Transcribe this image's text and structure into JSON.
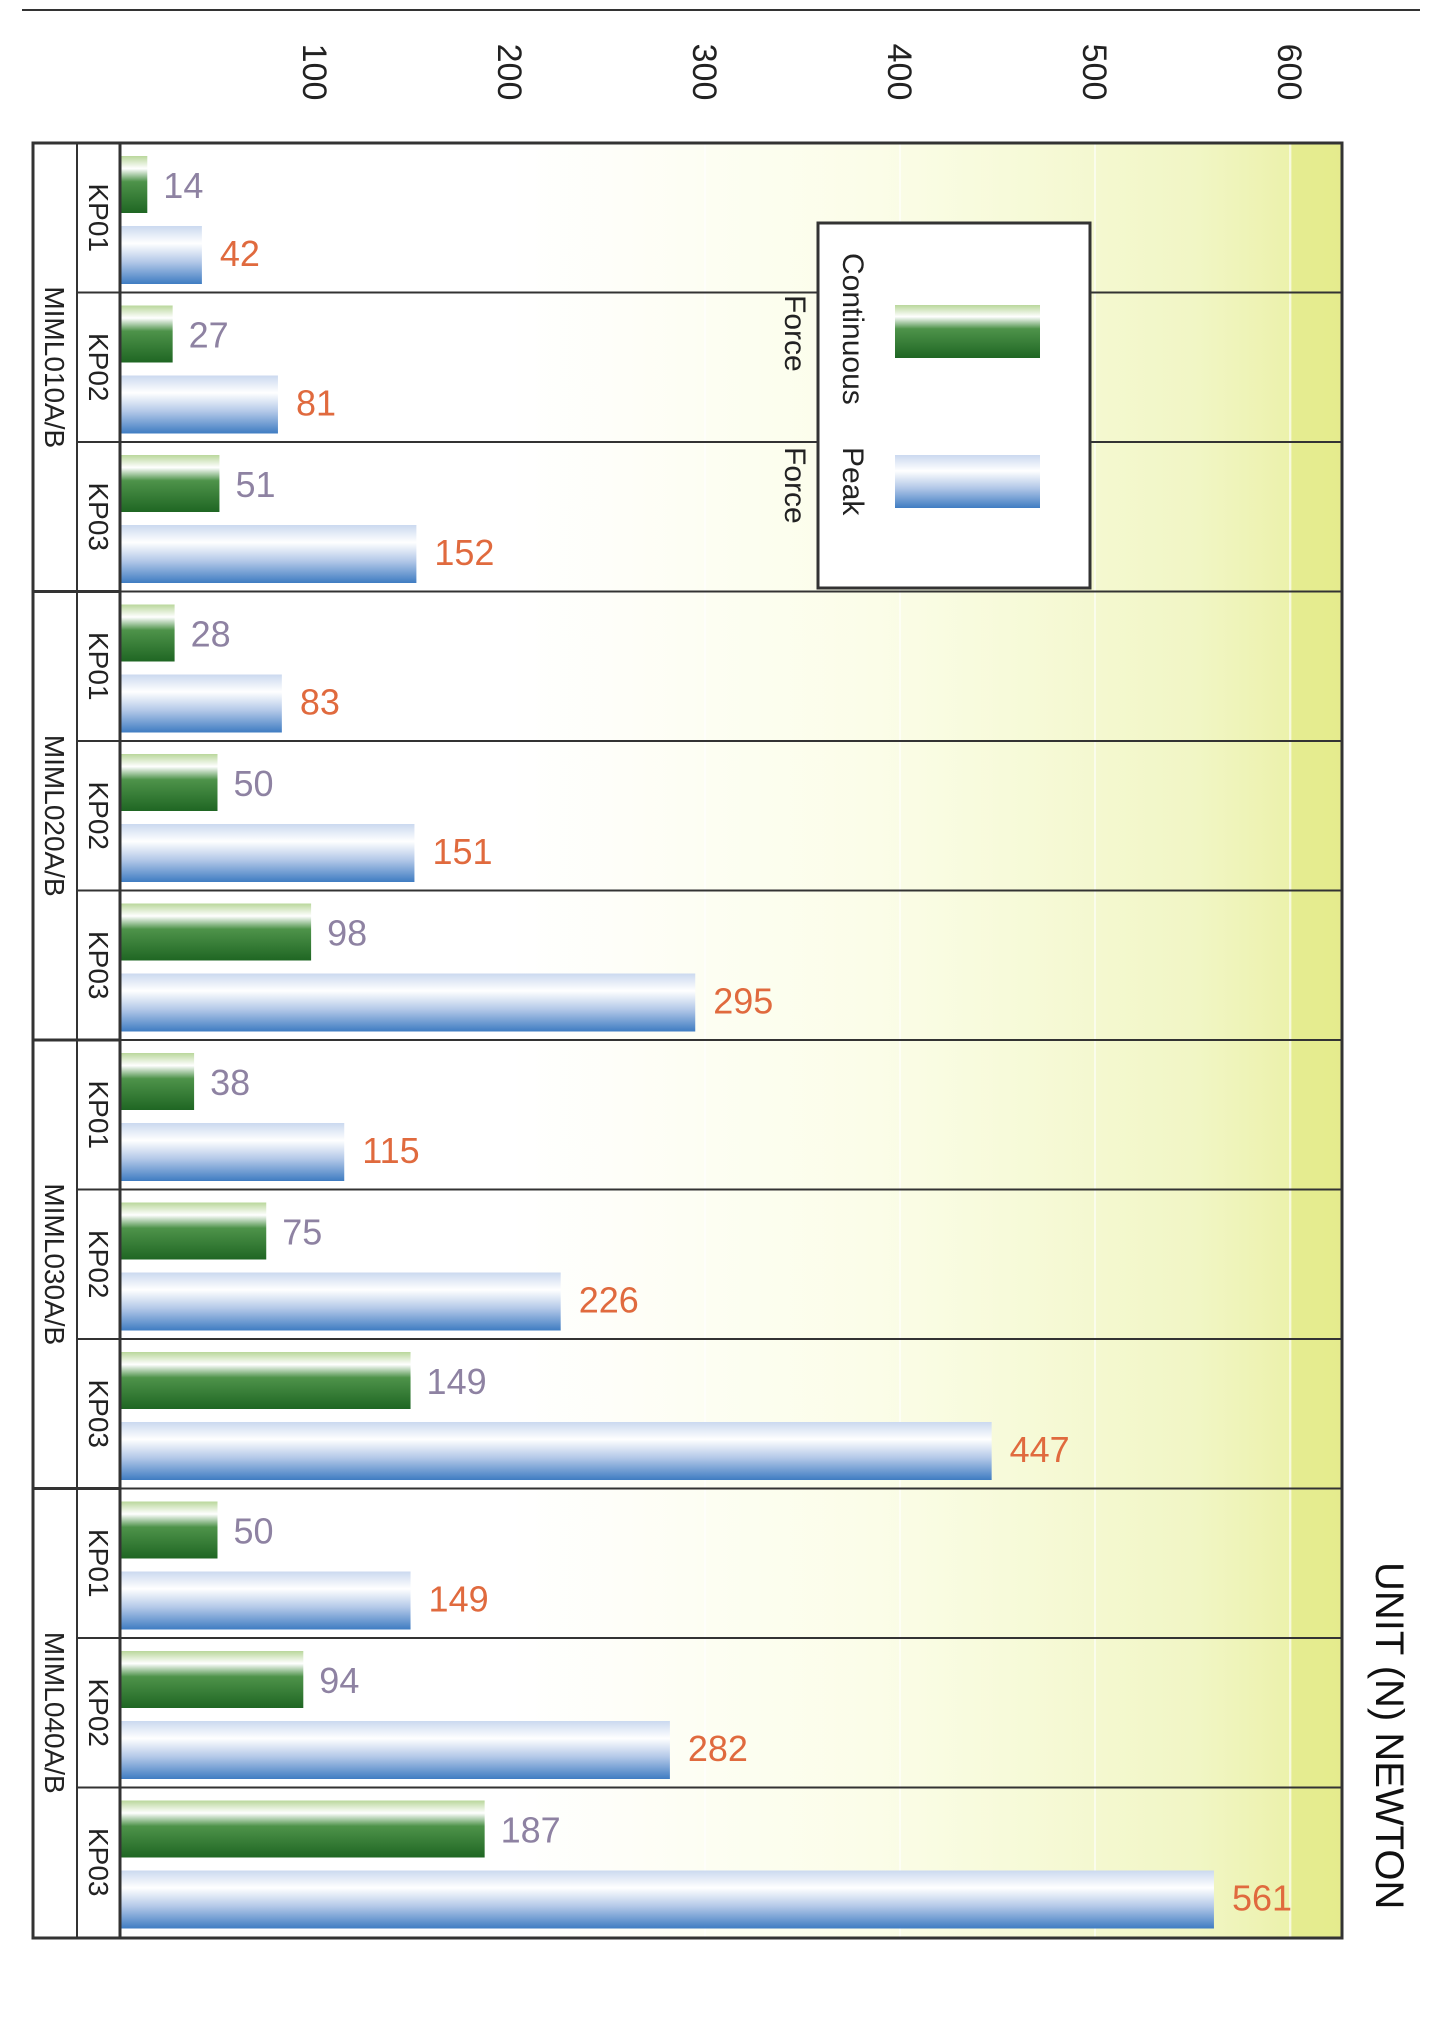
{
  "chart_data": {
    "type": "bar",
    "orientation": "horizontal",
    "rotated_page": true,
    "unit_label": "UNIT (N) NEWTON",
    "xlim": [
      0,
      625
    ],
    "x_ticks": [
      100,
      200,
      300,
      400,
      500,
      600
    ],
    "groups": [
      {
        "name": "MIML010A/B",
        "items": [
          "KP01",
          "KP02",
          "KP03"
        ]
      },
      {
        "name": "MIML020A/B",
        "items": [
          "KP01",
          "KP02",
          "KP03"
        ]
      },
      {
        "name": "MIML030A/B",
        "items": [
          "KP01",
          "KP02",
          "KP03"
        ]
      },
      {
        "name": "MIML040A/B",
        "items": [
          "KP01",
          "KP02",
          "KP03"
        ]
      }
    ],
    "series": [
      {
        "name": "Continuous Force",
        "color": "#2f7a2e",
        "values": [
          14,
          27,
          51,
          28,
          50,
          98,
          38,
          75,
          149,
          50,
          94,
          187
        ]
      },
      {
        "name": "Peak Force",
        "color": "#4a86c8",
        "values": [
          42,
          81,
          152,
          83,
          151,
          295,
          115,
          226,
          447,
          149,
          282,
          561
        ]
      }
    ],
    "legend": {
      "position": "top-right",
      "entries": [
        {
          "line1": "Continuous",
          "line2": "Force"
        },
        {
          "line1": "Peak",
          "line2": "Force"
        }
      ]
    },
    "colors": {
      "continuous_dark": "#2f7a2e",
      "continuous_light": "#e9f3df",
      "peak_dark": "#4a86c8",
      "peak_light": "#ffffff",
      "continuous_label": "#8e82a2",
      "peak_label": "#e06a3e",
      "background_tint": "#eef2a6"
    }
  }
}
